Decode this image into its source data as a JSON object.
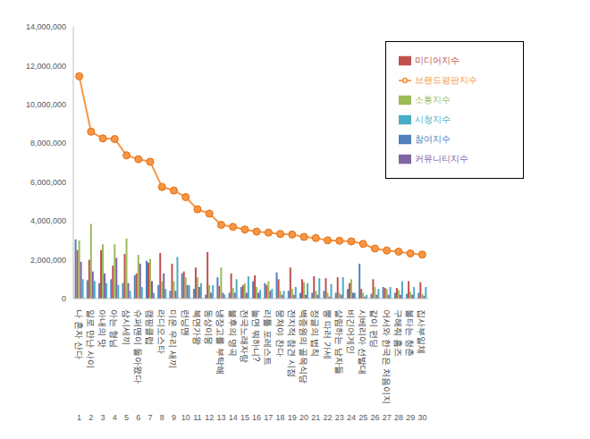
{
  "chart_data": {
    "type": "bar",
    "categories": [
      "나 혼자 산다",
      "일로 만난 사이",
      "아내의 맛",
      "아는 형님",
      "삼시세끼",
      "슈퍼맨이 돌아왔다",
      "캠핑클럽",
      "라디오스타",
      "미운 우리 새끼",
      "런닝맨",
      "복면가왕",
      "동상이몽",
      "냉장고를 부탁해",
      "불후의 명곡",
      "전국노래자랑",
      "놀면 뭐하니?",
      "리틀 포레스트",
      "뭉쳐야 찬다",
      "전지적 참견 시점",
      "백종원의 골목식당",
      "정글의 법칙",
      "뽕 따러 가세",
      "살림하는 남자들",
      "비긴어게인",
      "시베리아 선발대",
      "같이 펀딩",
      "어서와 한국은 처음이지",
      "구해줘 홈즈",
      "불타는 청춘",
      "집사부일체"
    ],
    "ranks": [
      1,
      2,
      3,
      4,
      5,
      6,
      7,
      8,
      9,
      10,
      11,
      12,
      13,
      14,
      15,
      16,
      17,
      18,
      19,
      20,
      21,
      22,
      23,
      24,
      25,
      26,
      27,
      28,
      29,
      30
    ],
    "series": [
      {
        "name": "참여지수",
        "type": "bar",
        "color": "#4f81bd",
        "values": [
          3050000,
          950000,
          800000,
          1000000,
          800000,
          1200000,
          1950000,
          700000,
          400000,
          1300000,
          500000,
          200000,
          1100000,
          300000,
          600000,
          900000,
          800000,
          1350000,
          400000,
          300000,
          300000,
          400000,
          300000,
          500000,
          1800000,
          250000,
          600000,
          300000,
          250000,
          300000
        ]
      },
      {
        "name": "미디어지수",
        "type": "bar",
        "color": "#c0504d",
        "values": [
          2500000,
          2000000,
          2500000,
          1700000,
          2300000,
          1300000,
          1850000,
          2350000,
          1800000,
          1400000,
          1600000,
          2400000,
          650000,
          1300000,
          700000,
          1200000,
          700000,
          1000000,
          1600000,
          1000000,
          1150000,
          1050000,
          1100000,
          800000,
          500000,
          1000000,
          550000,
          550000,
          900000,
          850000
        ]
      },
      {
        "name": "소통지수",
        "type": "bar",
        "color": "#9bbb59",
        "values": [
          3000000,
          3850000,
          2800000,
          2800000,
          3100000,
          2250000,
          2050000,
          900000,
          900000,
          1100000,
          1100000,
          700000,
          1600000,
          550000,
          800000,
          600000,
          900000,
          400000,
          500000,
          850000,
          400000,
          300000,
          300000,
          1000000,
          300000,
          600000,
          500000,
          450000,
          350000,
          250000
        ]
      },
      {
        "name": "커뮤니티지수",
        "type": "bar",
        "color": "#8064a2",
        "values": [
          1900000,
          1400000,
          1300000,
          2100000,
          800000,
          1800000,
          900000,
          1300000,
          400000,
          700000,
          600000,
          300000,
          300000,
          300000,
          300000,
          300000,
          400000,
          200000,
          200000,
          200000,
          200000,
          100000,
          200000,
          300000,
          100000,
          200000,
          200000,
          200000,
          200000,
          150000
        ]
      },
      {
        "name": "시청지수",
        "type": "bar",
        "color": "#4bacc6",
        "values": [
          1000000,
          900000,
          800000,
          700000,
          400000,
          600000,
          300000,
          500000,
          2150000,
          700000,
          800000,
          700000,
          200000,
          1000000,
          1150000,
          450000,
          500000,
          400000,
          600000,
          800000,
          1050000,
          750000,
          1100000,
          300000,
          200000,
          500000,
          600000,
          900000,
          600000,
          600000
        ]
      },
      {
        "name": "브랜드평판지수",
        "type": "line",
        "color": "#f79646",
        "marker": "circle",
        "values": [
          11450000,
          8600000,
          8250000,
          8220000,
          7380000,
          7180000,
          7050000,
          5750000,
          5570000,
          5230000,
          4600000,
          4380000,
          3800000,
          3700000,
          3560000,
          3450000,
          3400000,
          3330000,
          3300000,
          3180000,
          3120000,
          3000000,
          2980000,
          2950000,
          2820000,
          2580000,
          2480000,
          2420000,
          2330000,
          2270000
        ]
      }
    ],
    "ylim": [
      0,
      14000000
    ],
    "yticks": [
      0,
      {
        "value": 2000000,
        "label": "2,000,000"
      },
      {
        "value": 4000000,
        "label": "4,000,000"
      },
      {
        "value": 6000000,
        "label": "6,000,000"
      },
      {
        "value": 8000000,
        "label": "8,000,000"
      },
      {
        "value": 10000000,
        "label": "10,000,000"
      },
      {
        "value": 12000000,
        "label": "12,000,000"
      },
      {
        "value": 14000000,
        "label": "14,000,000"
      }
    ],
    "grid": false,
    "legend": "top right"
  }
}
